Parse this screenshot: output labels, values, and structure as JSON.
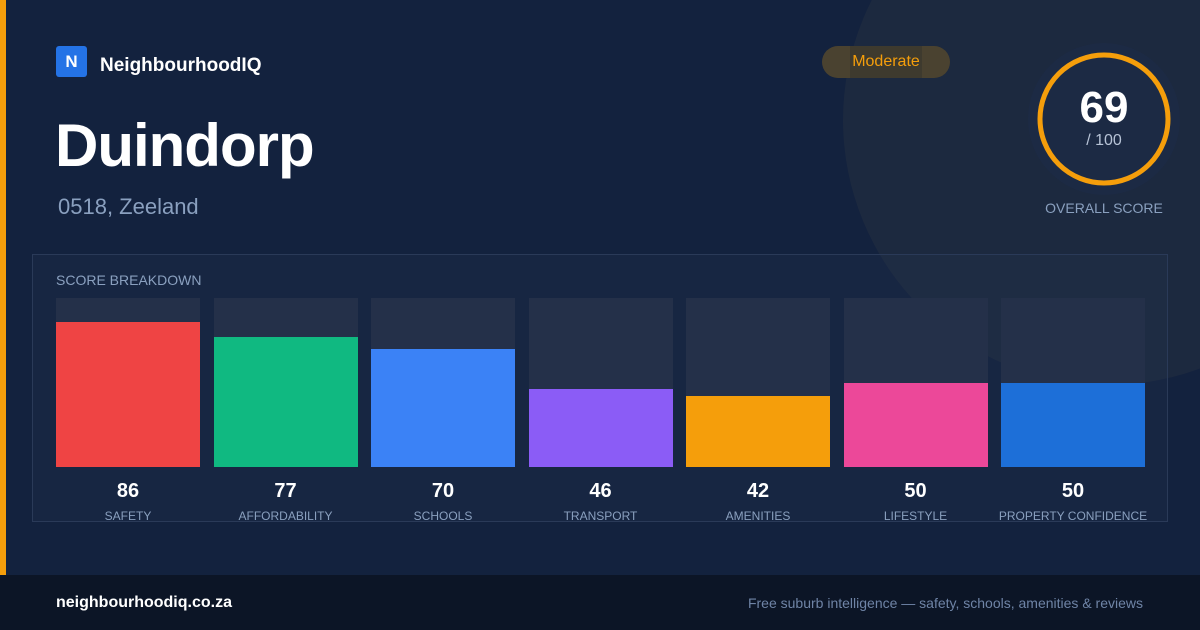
{
  "brand": {
    "logo_letter": "N",
    "name": "NeighbourhoodIQ",
    "color": "#2473e6"
  },
  "page": {
    "title": "Duindorp",
    "subtitle": "0518, Zeeland",
    "accent_color": "#f59e0b"
  },
  "rating": {
    "label": "Moderate",
    "color": "#f59e0b"
  },
  "overall": {
    "score": "69",
    "max": "/ 100",
    "label": "OVERALL SCORE",
    "fraction": 1.0,
    "ring_color": "#f59e0b"
  },
  "breakdown": {
    "title": "SCORE BREAKDOWN",
    "max_value": 100
  },
  "chart_data": {
    "type": "bar",
    "categories": [
      "SAFETY",
      "AFFORDABILITY",
      "SCHOOLS",
      "TRANSPORT",
      "AMENITIES",
      "LIFESTYLE",
      "PROPERTY CONFIDENCE"
    ],
    "values": [
      86,
      77,
      70,
      46,
      42,
      50,
      50
    ],
    "colors": [
      "#ef4444",
      "#10b981",
      "#3b82f6",
      "#8b5cf6",
      "#f59e0b",
      "#ec4899",
      "#1d6fd8"
    ],
    "ylim": [
      0,
      100
    ]
  },
  "footer": {
    "domain": "neighbourhoodiq.co.za",
    "tagline": "Free suburb intelligence — safety, schools, amenities & reviews"
  }
}
